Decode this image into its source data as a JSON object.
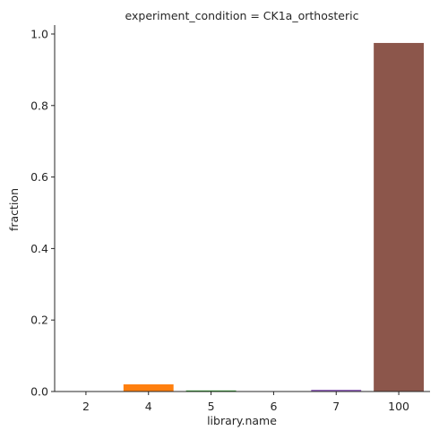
{
  "chart_data": {
    "type": "bar",
    "title": "experiment_condition = CK1a_orthosteric",
    "xlabel": "library.name",
    "ylabel": "fraction",
    "categories": [
      "2",
      "4",
      "5",
      "6",
      "7",
      "100"
    ],
    "values": [
      0.0,
      0.02,
      0.003,
      0.0,
      0.005,
      0.975
    ],
    "colors": [
      "#1f77b4",
      "#ff7f0e",
      "#2ca02c",
      "#d62728",
      "#9467bd",
      "#8c564b"
    ],
    "ylim": [
      0,
      1.025
    ],
    "yticks": [
      "0.0",
      "0.2",
      "0.4",
      "0.6",
      "0.8",
      "1.0"
    ],
    "grid": false,
    "legend": "none"
  }
}
